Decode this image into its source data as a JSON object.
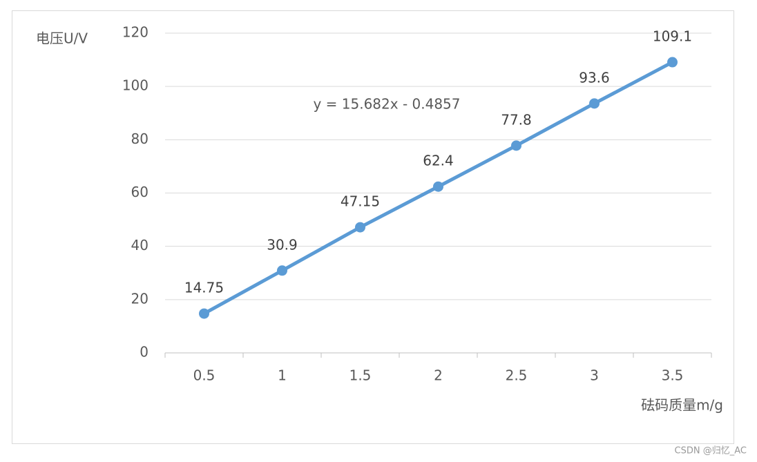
{
  "chart_data": {
    "type": "line",
    "y_label": "电压U/V",
    "x_label": "砝码质量m/g",
    "annotation": "y = 15.682x - 0.4857",
    "categories": [
      "0.5",
      "1",
      "1.5",
      "2",
      "2.5",
      "3",
      "3.5"
    ],
    "values": [
      14.75,
      30.9,
      47.15,
      62.4,
      77.8,
      93.6,
      109.1
    ],
    "color": "#5b9bd5",
    "ylim": [
      0,
      120
    ],
    "yticks": [
      0,
      20,
      40,
      60,
      80,
      100,
      120
    ],
    "grid": true
  },
  "watermark": "CSDN @归忆_AC"
}
